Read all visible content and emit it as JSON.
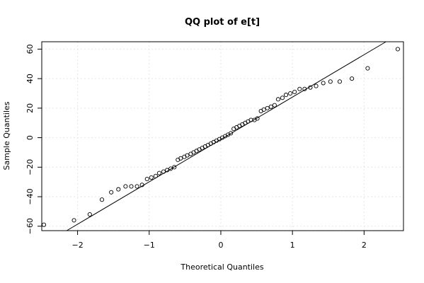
{
  "chart_data": {
    "type": "scatter",
    "title": "QQ plot of e[t]",
    "xlabel": "Theoretical Quantiles",
    "ylabel": "Sample Quantiles",
    "xlim": [
      -2.5,
      2.55
    ],
    "ylim": [
      -63,
      65
    ],
    "x_ticks": [
      -2,
      -1,
      0,
      1,
      2
    ],
    "y_ticks": [
      -60,
      -40,
      -20,
      0,
      20,
      40,
      60
    ],
    "x_tick_labels": [
      "−2",
      "−1",
      "0",
      "1",
      "2"
    ],
    "y_tick_labels": [
      "−60",
      "−40",
      "−20",
      "0",
      "20",
      "40",
      "60"
    ],
    "grid": true,
    "reference_line": {
      "x": [
        -2.5,
        2.55
      ],
      "y": [
        -73,
        72
      ]
    },
    "points": [
      [
        -2.47,
        -59
      ],
      [
        -2.05,
        -56
      ],
      [
        -1.83,
        -52
      ],
      [
        -1.66,
        -42
      ],
      [
        -1.53,
        -37
      ],
      [
        -1.43,
        -35
      ],
      [
        -1.33,
        -33
      ],
      [
        -1.25,
        -33
      ],
      [
        -1.17,
        -33
      ],
      [
        -1.1,
        -32
      ],
      [
        -1.03,
        -28
      ],
      [
        -0.97,
        -27
      ],
      [
        -0.91,
        -26
      ],
      [
        -0.86,
        -24
      ],
      [
        -0.8,
        -23
      ],
      [
        -0.75,
        -22
      ],
      [
        -0.7,
        -21
      ],
      [
        -0.65,
        -20
      ],
      [
        -0.6,
        -15
      ],
      [
        -0.56,
        -14
      ],
      [
        -0.51,
        -13
      ],
      [
        -0.47,
        -12
      ],
      [
        -0.42,
        -11
      ],
      [
        -0.38,
        -10
      ],
      [
        -0.34,
        -9
      ],
      [
        -0.3,
        -8
      ],
      [
        -0.26,
        -7
      ],
      [
        -0.22,
        -6
      ],
      [
        -0.18,
        -5
      ],
      [
        -0.14,
        -4
      ],
      [
        -0.1,
        -3
      ],
      [
        -0.06,
        -2
      ],
      [
        -0.02,
        -1
      ],
      [
        0.02,
        0
      ],
      [
        0.06,
        1
      ],
      [
        0.1,
        2
      ],
      [
        0.14,
        3
      ],
      [
        0.18,
        6
      ],
      [
        0.22,
        7
      ],
      [
        0.26,
        8
      ],
      [
        0.3,
        9
      ],
      [
        0.34,
        10
      ],
      [
        0.38,
        11
      ],
      [
        0.42,
        12
      ],
      [
        0.47,
        12
      ],
      [
        0.51,
        13
      ],
      [
        0.56,
        18
      ],
      [
        0.6,
        19
      ],
      [
        0.65,
        20
      ],
      [
        0.7,
        21
      ],
      [
        0.75,
        22
      ],
      [
        0.8,
        26
      ],
      [
        0.86,
        27
      ],
      [
        0.91,
        29
      ],
      [
        0.97,
        30
      ],
      [
        1.03,
        31
      ],
      [
        1.1,
        33
      ],
      [
        1.17,
        33
      ],
      [
        1.25,
        34
      ],
      [
        1.33,
        35
      ],
      [
        1.43,
        37
      ],
      [
        1.53,
        38
      ],
      [
        1.66,
        38
      ],
      [
        1.83,
        40
      ],
      [
        2.05,
        47
      ],
      [
        2.47,
        60
      ]
    ]
  }
}
